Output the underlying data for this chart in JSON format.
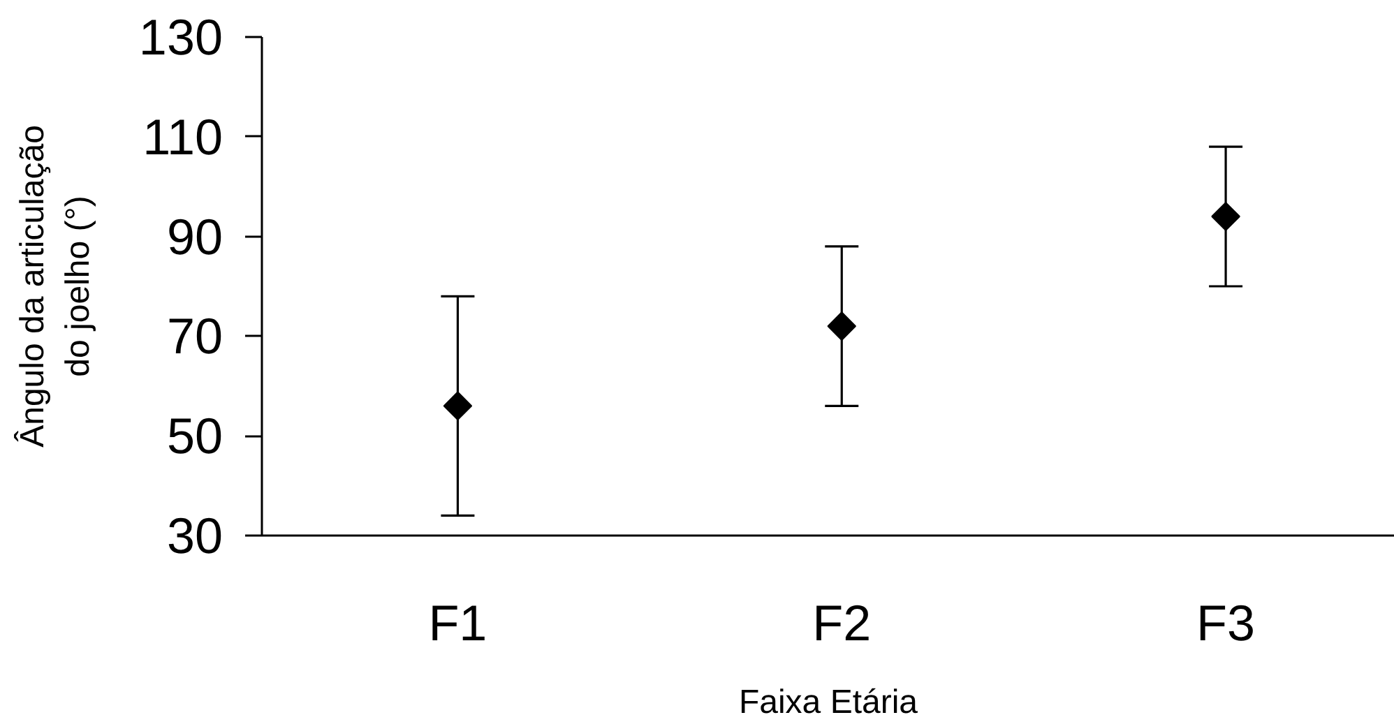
{
  "chart_data": {
    "type": "scatter",
    "xlabel": "Faixa Etária",
    "ylabel": "Ângulo da articulação\ndo joelho (°)",
    "categories": [
      "F1",
      "F2",
      "F3"
    ],
    "values": [
      56,
      72,
      94
    ],
    "errors": [
      22,
      16,
      14
    ],
    "color": "#000000",
    "marker": "diamond",
    "ylim": [
      30,
      130
    ],
    "yticks": [
      30,
      50,
      70,
      90,
      110,
      130
    ]
  }
}
